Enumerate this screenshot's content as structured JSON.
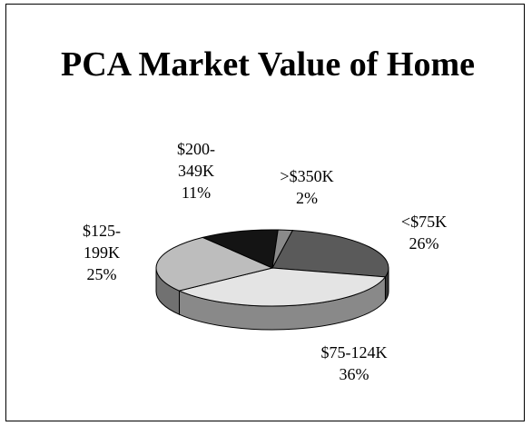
{
  "chart_data": {
    "type": "pie3d",
    "title": "PCA Market Value of Home",
    "categories": [
      "<$75K",
      "$75-124K",
      "$125-199K",
      "$200-349K",
      ">$350K"
    ],
    "values": [
      26,
      36,
      25,
      11,
      2
    ],
    "value_labels": [
      "26%",
      "36%",
      "25%",
      "11%",
      "2%"
    ],
    "colors": [
      "#5a5a5a",
      "#e4e4e4",
      "#bdbdbd",
      "#141414",
      "#8a8a8a"
    ]
  }
}
